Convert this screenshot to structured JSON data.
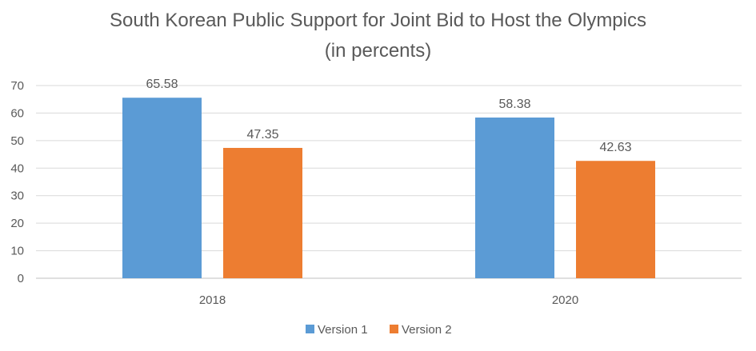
{
  "chart_data": {
    "type": "bar",
    "title_lines": [
      "South Korean Public Support for Joint Bid to Host the Olympics",
      "(in percents)"
    ],
    "categories": [
      "2018",
      "2020"
    ],
    "series": [
      {
        "name": "Version 1",
        "values": [
          65.58,
          58.38
        ],
        "color": "#5B9BD5"
      },
      {
        "name": "Version 2",
        "values": [
          47.35,
          42.63
        ],
        "color": "#ED7D31"
      }
    ],
    "y_ticks": [
      "0",
      "10",
      "20",
      "30",
      "40",
      "50",
      "60",
      "70"
    ],
    "ylim": [
      0,
      70
    ],
    "grid": true,
    "legend_position": "bottom"
  }
}
